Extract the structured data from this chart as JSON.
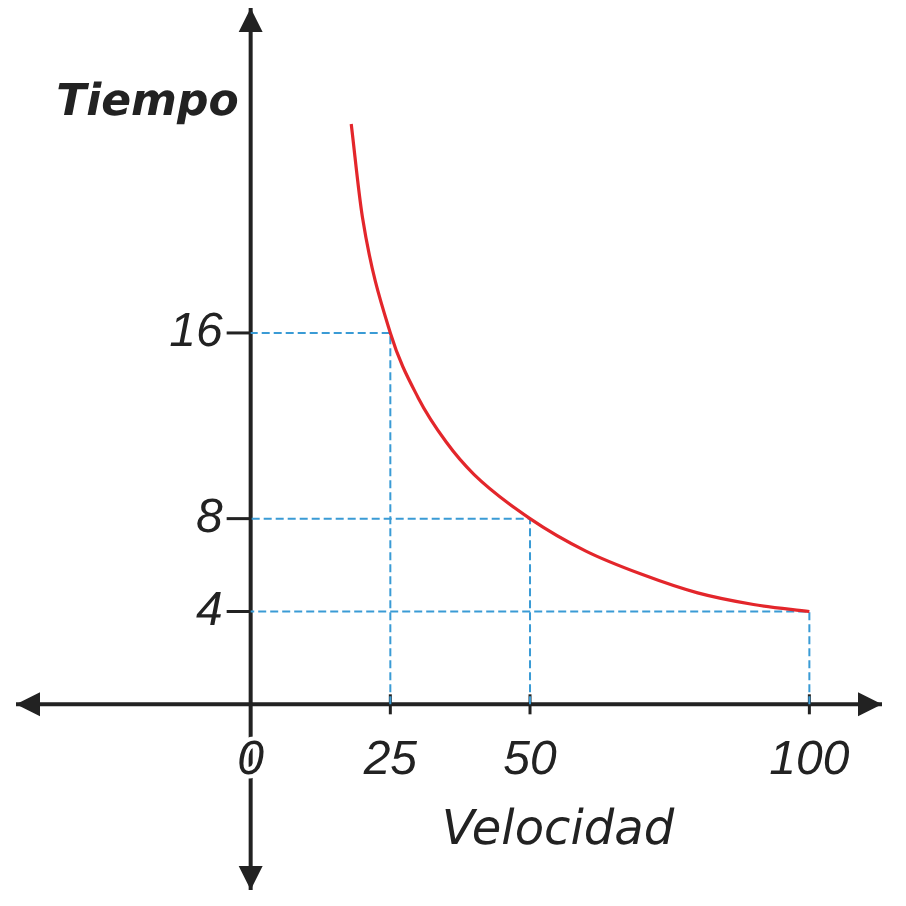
{
  "chart_data": {
    "type": "line",
    "xlabel": "Velocidad",
    "ylabel": "Tiempo",
    "x": [
      18,
      20,
      25,
      30,
      35,
      40,
      50,
      60,
      70,
      80,
      90,
      100
    ],
    "series": [
      {
        "color": "#e3262b",
        "values": [
          25,
          21,
          16,
          13.2,
          11.3,
          9.9,
          8,
          6.6,
          5.6,
          4.8,
          4.3,
          4
        ]
      },
      {
        "color": "#3a9bd5",
        "line_style": "dashed",
        "x": [
          25,
          25,
          0
        ],
        "values": [
          0,
          16,
          16
        ]
      },
      {
        "color": "#3a9bd5",
        "line_style": "dashed",
        "x": [
          50,
          50,
          0
        ],
        "values": [
          0,
          8,
          8
        ]
      },
      {
        "color": "#3a9bd5",
        "line_style": "dashed",
        "x": [
          100,
          100,
          0
        ],
        "values": [
          0,
          4,
          4
        ]
      }
    ],
    "xlim": [
      -42,
      113
    ],
    "ylim": [
      -8,
      30
    ],
    "xticks": [
      0,
      25,
      50,
      100
    ],
    "yticks": [
      4,
      8,
      16
    ],
    "grid": false,
    "legend": false,
    "marker": "none",
    "line_style": "solid"
  }
}
